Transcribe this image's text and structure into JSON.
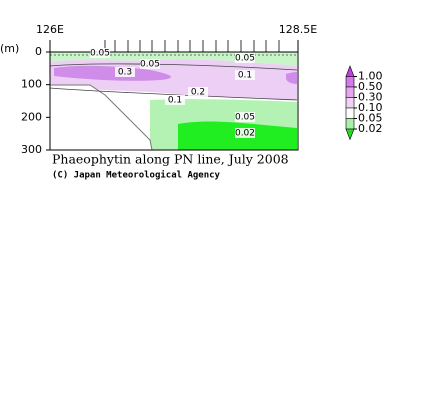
{
  "chart_data": {
    "type": "contour",
    "title": "Phaeophytin along PN line, July 2008",
    "credit": "(C) Japan Meteorological Agency",
    "y_label": "(m)",
    "xlim": [
      126,
      128.5
    ],
    "xticks": [
      {
        "value": 126,
        "label": "126E"
      },
      {
        "value": 128.5,
        "label": "128.5E"
      }
    ],
    "ylim": [
      0,
      300
    ],
    "yticks": [
      0,
      100,
      200,
      300
    ],
    "y_inverted": true,
    "colorbar": {
      "levels": [
        {
          "value": 1,
          "label": "1.00"
        },
        {
          "value": 0.5,
          "label": "0.50"
        },
        {
          "value": 0.3,
          "label": "0.30"
        },
        {
          "value": 0.1,
          "label": "0.10"
        },
        {
          "value": 0.05,
          "label": "0.05"
        },
        {
          "value": 0.02,
          "label": "0.02"
        }
      ],
      "colors": [
        "#c040e0",
        "#d47ae8",
        "#e4a6f0",
        "#f1d2f6",
        "#ffffff",
        "#a8f0a8",
        "#20dd20"
      ]
    },
    "contour_labels": [
      "0.05",
      "0.05",
      "0.05",
      "0.3",
      "0.1",
      "0.2",
      "0.1",
      "0.05",
      "0.02"
    ]
  }
}
